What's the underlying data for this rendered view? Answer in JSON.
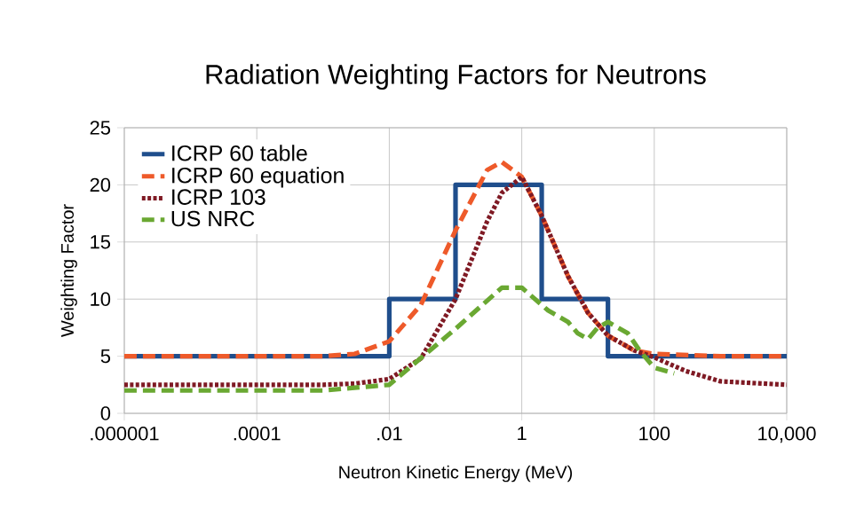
{
  "chart_data": {
    "type": "line",
    "title": "Radiation Weighting Factors for Neutrons",
    "xlabel": "Neutron Kinetic Energy (MeV)",
    "ylabel": "Weighting Factor",
    "log": "x",
    "grid": true,
    "legend": "top left",
    "marker": "none",
    "xlim": [
      1e-06,
      10000
    ],
    "ylim": [
      0,
      25
    ],
    "xticks": [
      {
        "value": 1e-06,
        "label": ".000001"
      },
      {
        "value": 0.0001,
        "label": ".0001"
      },
      {
        "value": 0.01,
        "label": ".01"
      },
      1,
      100,
      {
        "value": 10000,
        "label": "10,000"
      }
    ],
    "yticks": [
      0,
      5,
      10,
      15,
      20,
      25
    ],
    "series": [
      {
        "name": "ICRP 60 table",
        "type": "step",
        "color": "#1f4e8c",
        "line_style": "solid",
        "x": [
          1e-06,
          0.01,
          0.1,
          2,
          20,
          10000
        ],
        "values": [
          5,
          10,
          20,
          10,
          5,
          5
        ]
      },
      {
        "name": "ICRP 60 equation",
        "color": "#ee5a2a",
        "line_style": "dashed",
        "x": [
          1e-06,
          0.001,
          0.003,
          0.01,
          0.03,
          0.1,
          0.3,
          0.5,
          1,
          2,
          5,
          10,
          20,
          50,
          100,
          1000,
          10000
        ],
        "values": [
          5,
          5,
          5.2,
          6.3,
          9.5,
          16,
          21.3,
          22,
          20.7,
          17.3,
          12,
          8.8,
          6.8,
          5.5,
          5.2,
          5,
          5
        ]
      },
      {
        "name": "ICRP 103",
        "color": "#7f1a24",
        "line_style": "dotted",
        "x": [
          1e-06,
          0.001,
          0.003,
          0.01,
          0.03,
          0.1,
          0.3,
          0.5,
          1,
          2,
          5,
          10,
          20,
          50,
          100,
          300,
          1000,
          10000
        ],
        "values": [
          2.5,
          2.5,
          2.6,
          3,
          4.8,
          10,
          16.8,
          19.3,
          20.7,
          17.3,
          12,
          8.8,
          6.8,
          5.5,
          4.9,
          3.7,
          2.8,
          2.5
        ]
      },
      {
        "name": "US NRC",
        "color": "#6aa832",
        "line_style": "dashed",
        "x": [
          1e-06,
          0.0001,
          0.001,
          0.01,
          0.1,
          0.5,
          1,
          2.5,
          5,
          7,
          10,
          14,
          20,
          40,
          60,
          100,
          200
        ],
        "values": [
          2,
          2,
          2,
          2.5,
          7.4,
          11,
          11,
          9,
          8,
          7,
          6.5,
          7.5,
          8,
          7,
          5.5,
          4,
          3.5
        ]
      }
    ]
  }
}
